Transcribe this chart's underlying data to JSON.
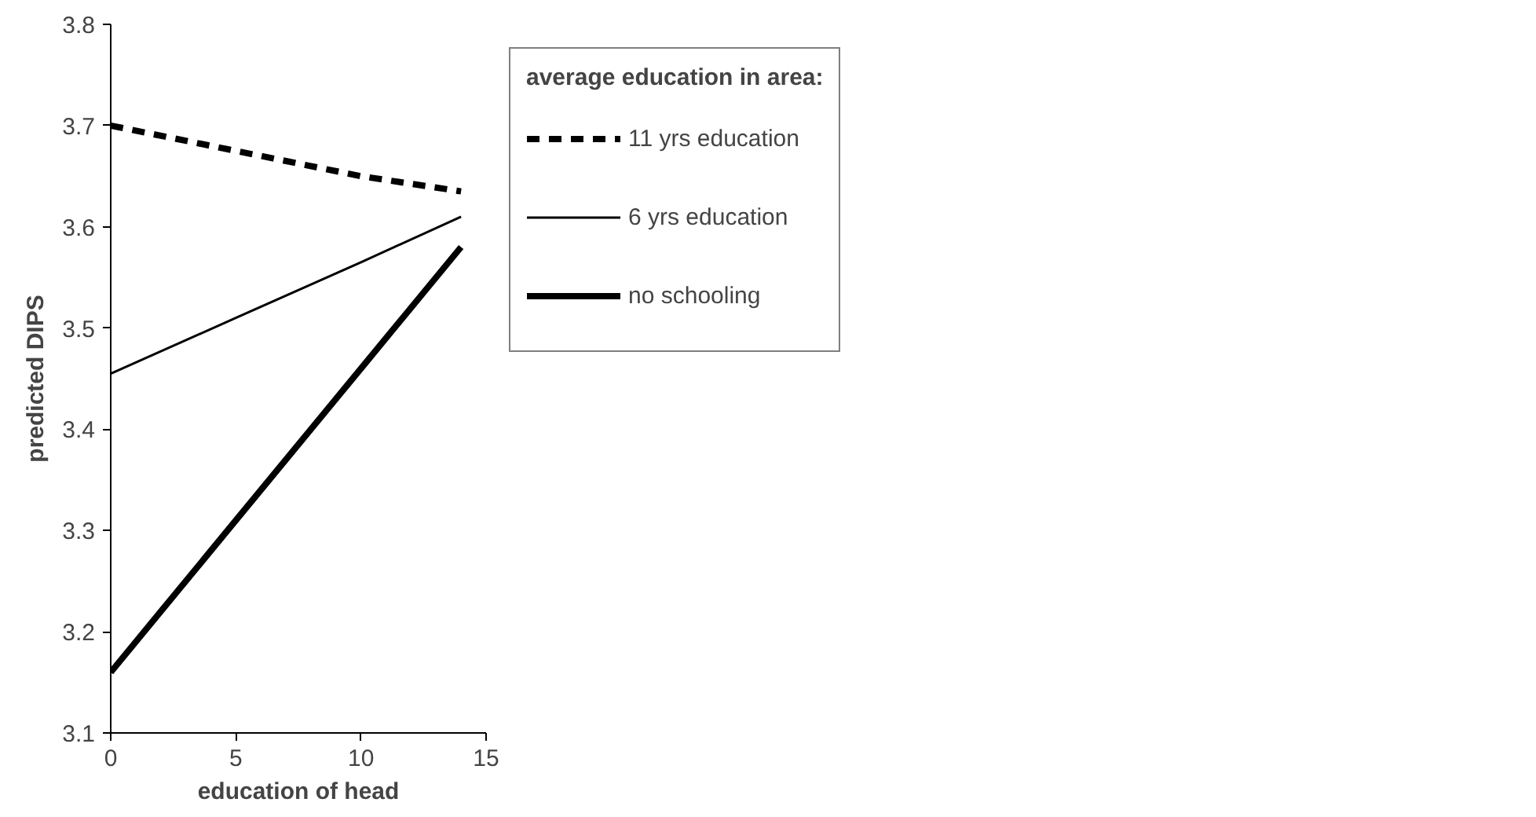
{
  "chart_data": {
    "type": "line",
    "xlabel": "education of head",
    "ylabel": "predicted DIPS",
    "legend_title": "average education in area:",
    "legend": "right",
    "grid": false,
    "marker": "none",
    "xlim": [
      0,
      15
    ],
    "xticks": [
      0,
      5,
      10,
      15
    ],
    "ylim": [
      3.1,
      3.8
    ],
    "yticks": [
      3.1,
      3.2,
      3.3,
      3.4,
      3.5,
      3.6,
      3.7,
      3.8
    ],
    "series": [
      {
        "name": "11 yrs education",
        "color": "#000000",
        "line_style": "dashed",
        "x": [
          0,
          5,
          10,
          14
        ],
        "values": [
          3.7,
          3.675,
          3.65,
          3.635
        ]
      },
      {
        "name": "6 yrs education",
        "color": "#000000",
        "line_style": "solid",
        "x": [
          0,
          5,
          10,
          14
        ],
        "values": [
          3.455,
          3.51,
          3.565,
          3.61
        ]
      },
      {
        "name": "no schooling",
        "color": "#000000",
        "line_style": "solid",
        "x": [
          0,
          5,
          10,
          14
        ],
        "values": [
          3.16,
          3.31,
          3.46,
          3.58
        ]
      }
    ]
  }
}
